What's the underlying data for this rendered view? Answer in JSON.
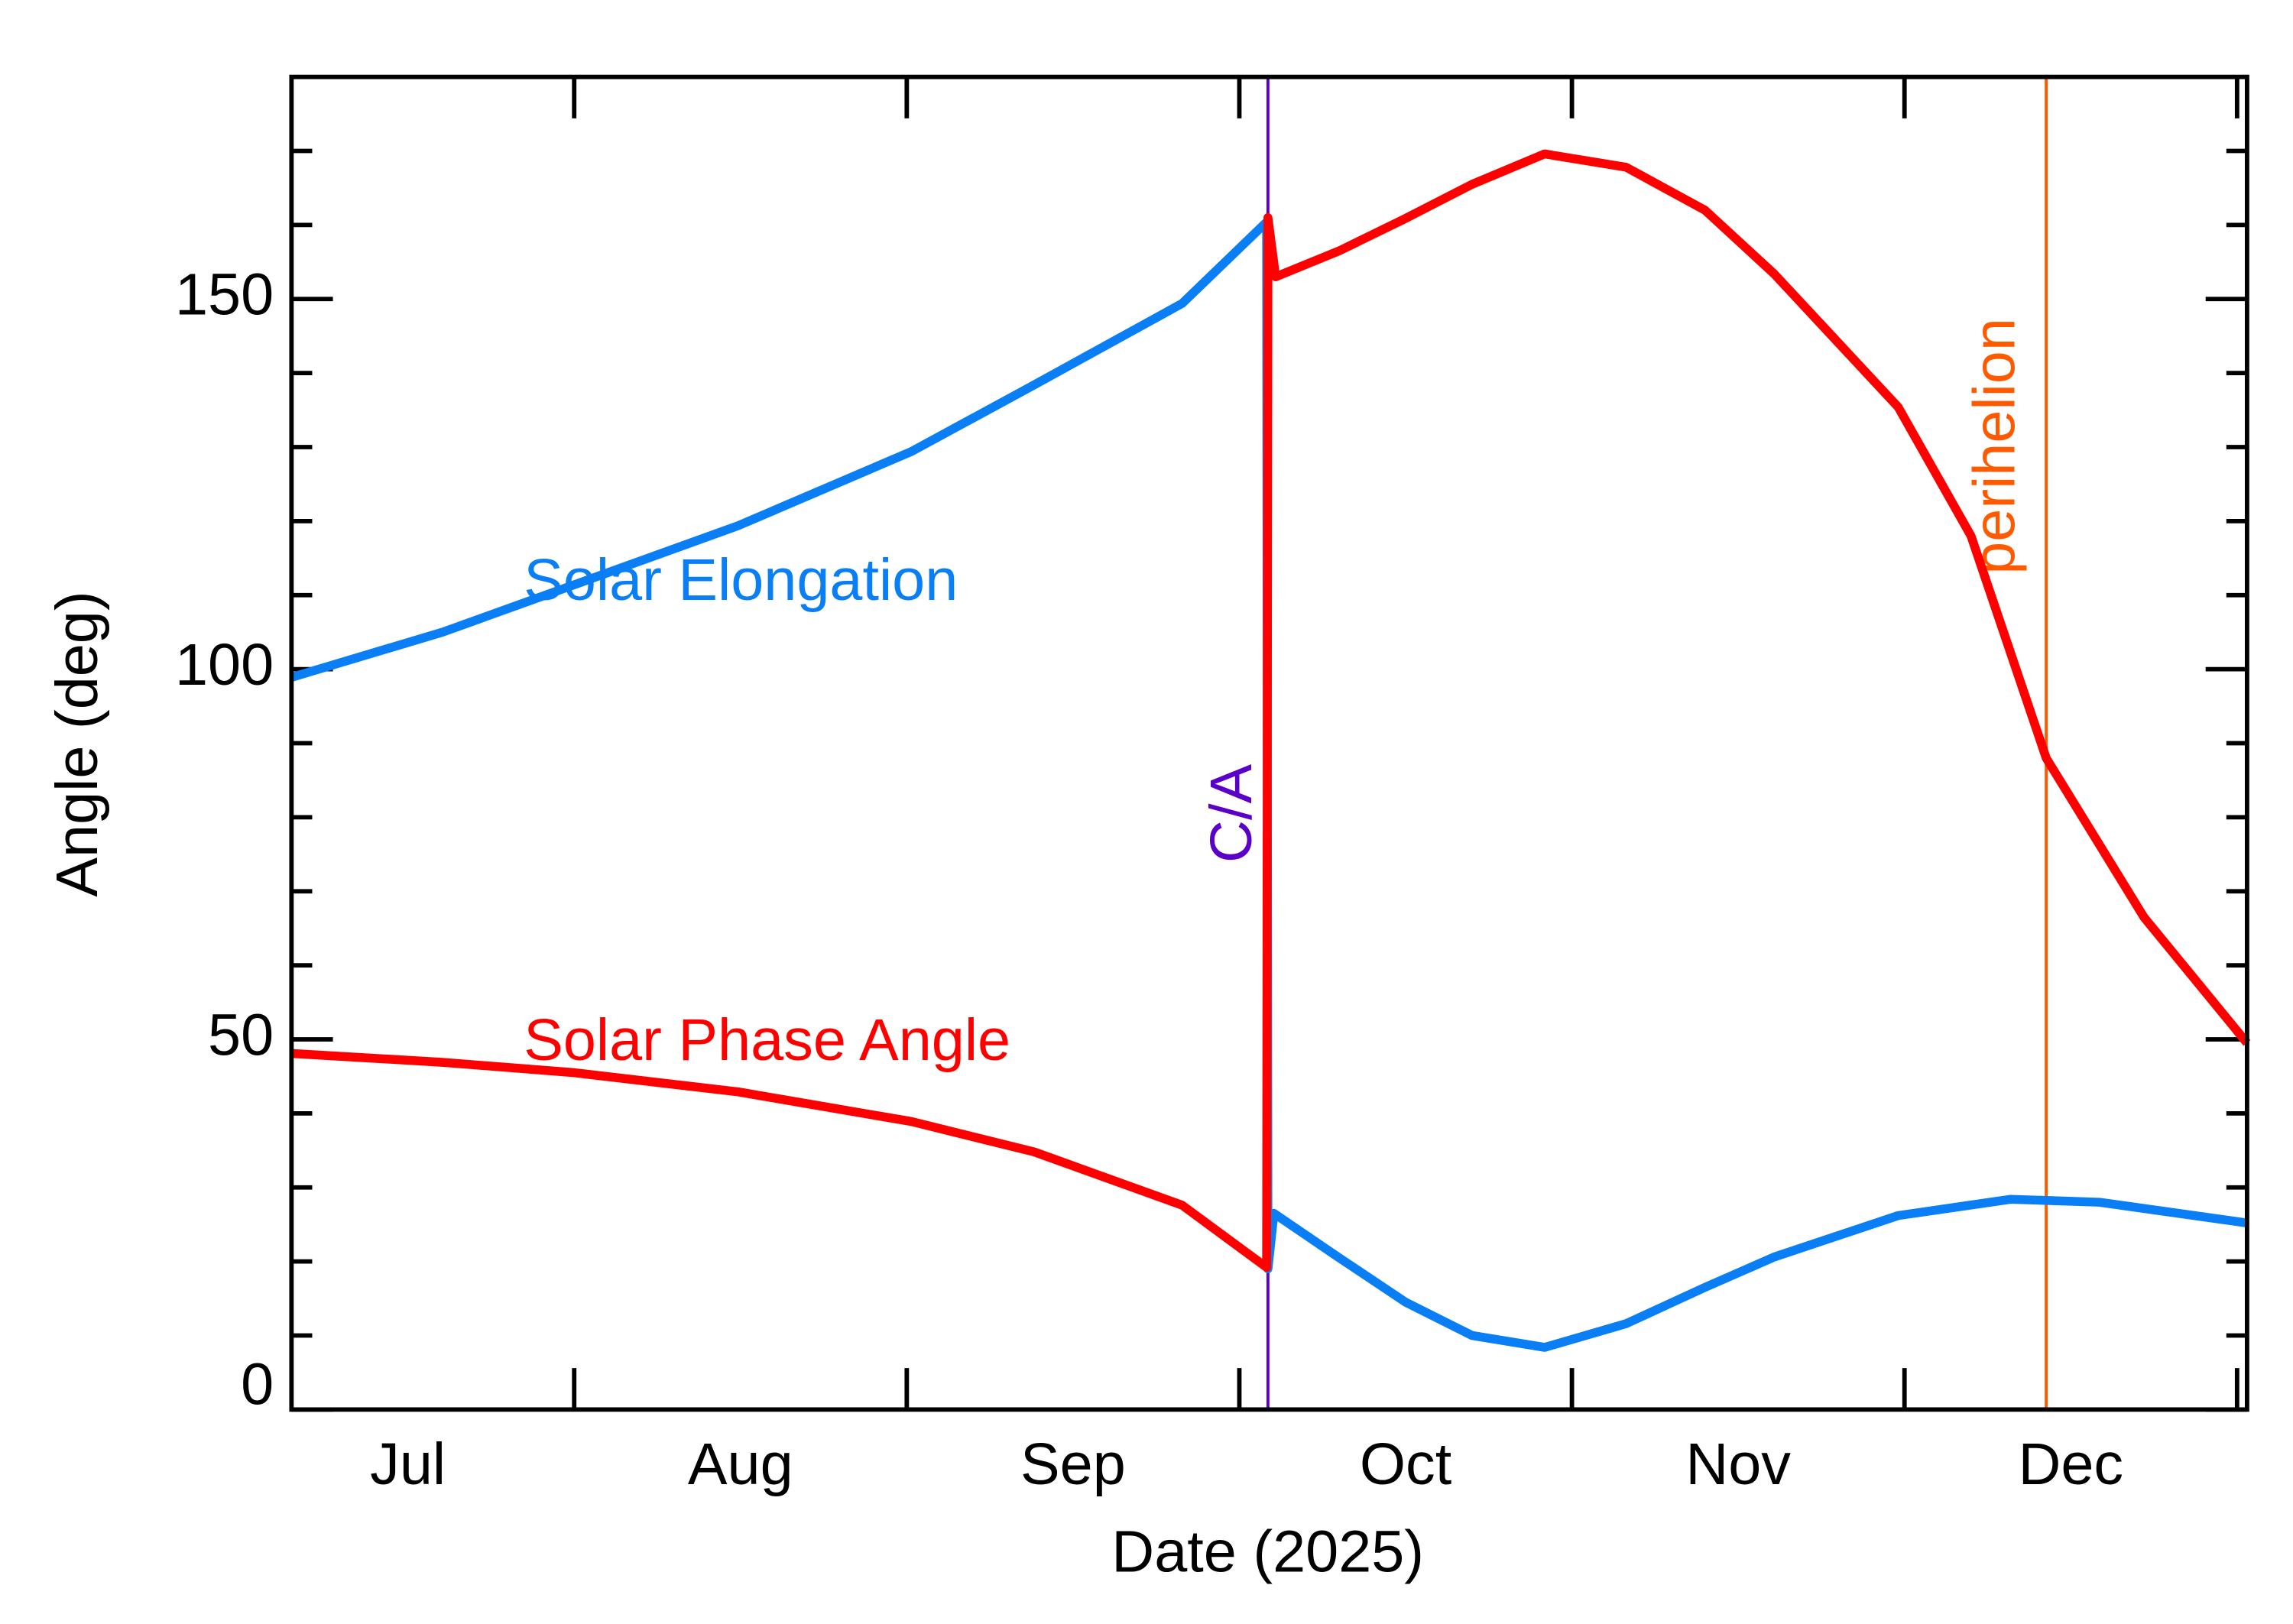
{
  "chart_data": {
    "type": "line",
    "xlabel": "Date (2025)",
    "ylabel": "Angle (deg)",
    "xlim": [
      7.15,
      13.03
    ],
    "ylim": [
      0,
      180
    ],
    "xticks": [
      8,
      9,
      10,
      11,
      12,
      13
    ],
    "xtick_labels": [
      {
        "value": 7.5,
        "label": "Jul"
      },
      {
        "value": 8.5,
        "label": "Aug"
      },
      {
        "value": 9.5,
        "label": "Sep"
      },
      {
        "value": 10.5,
        "label": "Oct"
      },
      {
        "value": 11.5,
        "label": "Nov"
      },
      {
        "value": 12.5,
        "label": "Dec"
      }
    ],
    "yticks": [
      0,
      50,
      100,
      150
    ],
    "yminorticks": [
      10,
      20,
      30,
      40,
      60,
      70,
      80,
      90,
      110,
      120,
      130,
      140,
      160,
      170
    ],
    "series": [
      {
        "name": "Solar Elongation",
        "color": "#0a7ff5",
        "x": [
          7.15,
          7.604,
          8,
          8.494,
          9.014,
          9.383,
          9.828,
          10.082,
          10.086,
          10.104,
          10.3,
          10.5,
          10.7,
          10.918,
          11.163,
          11.4,
          11.608,
          11.981,
          12.319,
          12.586,
          13.03
        ],
        "values": [
          98.9,
          105,
          111.4,
          119.4,
          129.4,
          138.4,
          149.4,
          160.4,
          19,
          26.5,
          20.5,
          14.5,
          10,
          8.4,
          11.6,
          16.5,
          20.6,
          26.2,
          28.4,
          28,
          25.2
        ]
      },
      {
        "name": "Solar Phase Angle",
        "color": "#ff0000",
        "x": [
          7.15,
          7.604,
          8,
          8.494,
          9.014,
          9.383,
          9.828,
          10.082,
          10.086,
          10.109,
          10.3,
          10.496,
          10.7,
          10.918,
          11.163,
          11.4,
          11.608,
          11.981,
          12.2,
          12.426,
          12.72,
          13.03
        ],
        "values": [
          48.1,
          46.9,
          45.5,
          42.9,
          38.9,
          34.8,
          27.6,
          19.2,
          161,
          153,
          156.5,
          160.8,
          165.5,
          169.6,
          167.8,
          162,
          153.4,
          135.4,
          118,
          88,
          66.5,
          49.5
        ]
      }
    ],
    "vlines": [
      {
        "x": 10.086,
        "label": "C/A",
        "color": "#5a00c8"
      },
      {
        "x": 12.426,
        "label": "perihelion",
        "color": "#ff5a00"
      }
    ]
  }
}
